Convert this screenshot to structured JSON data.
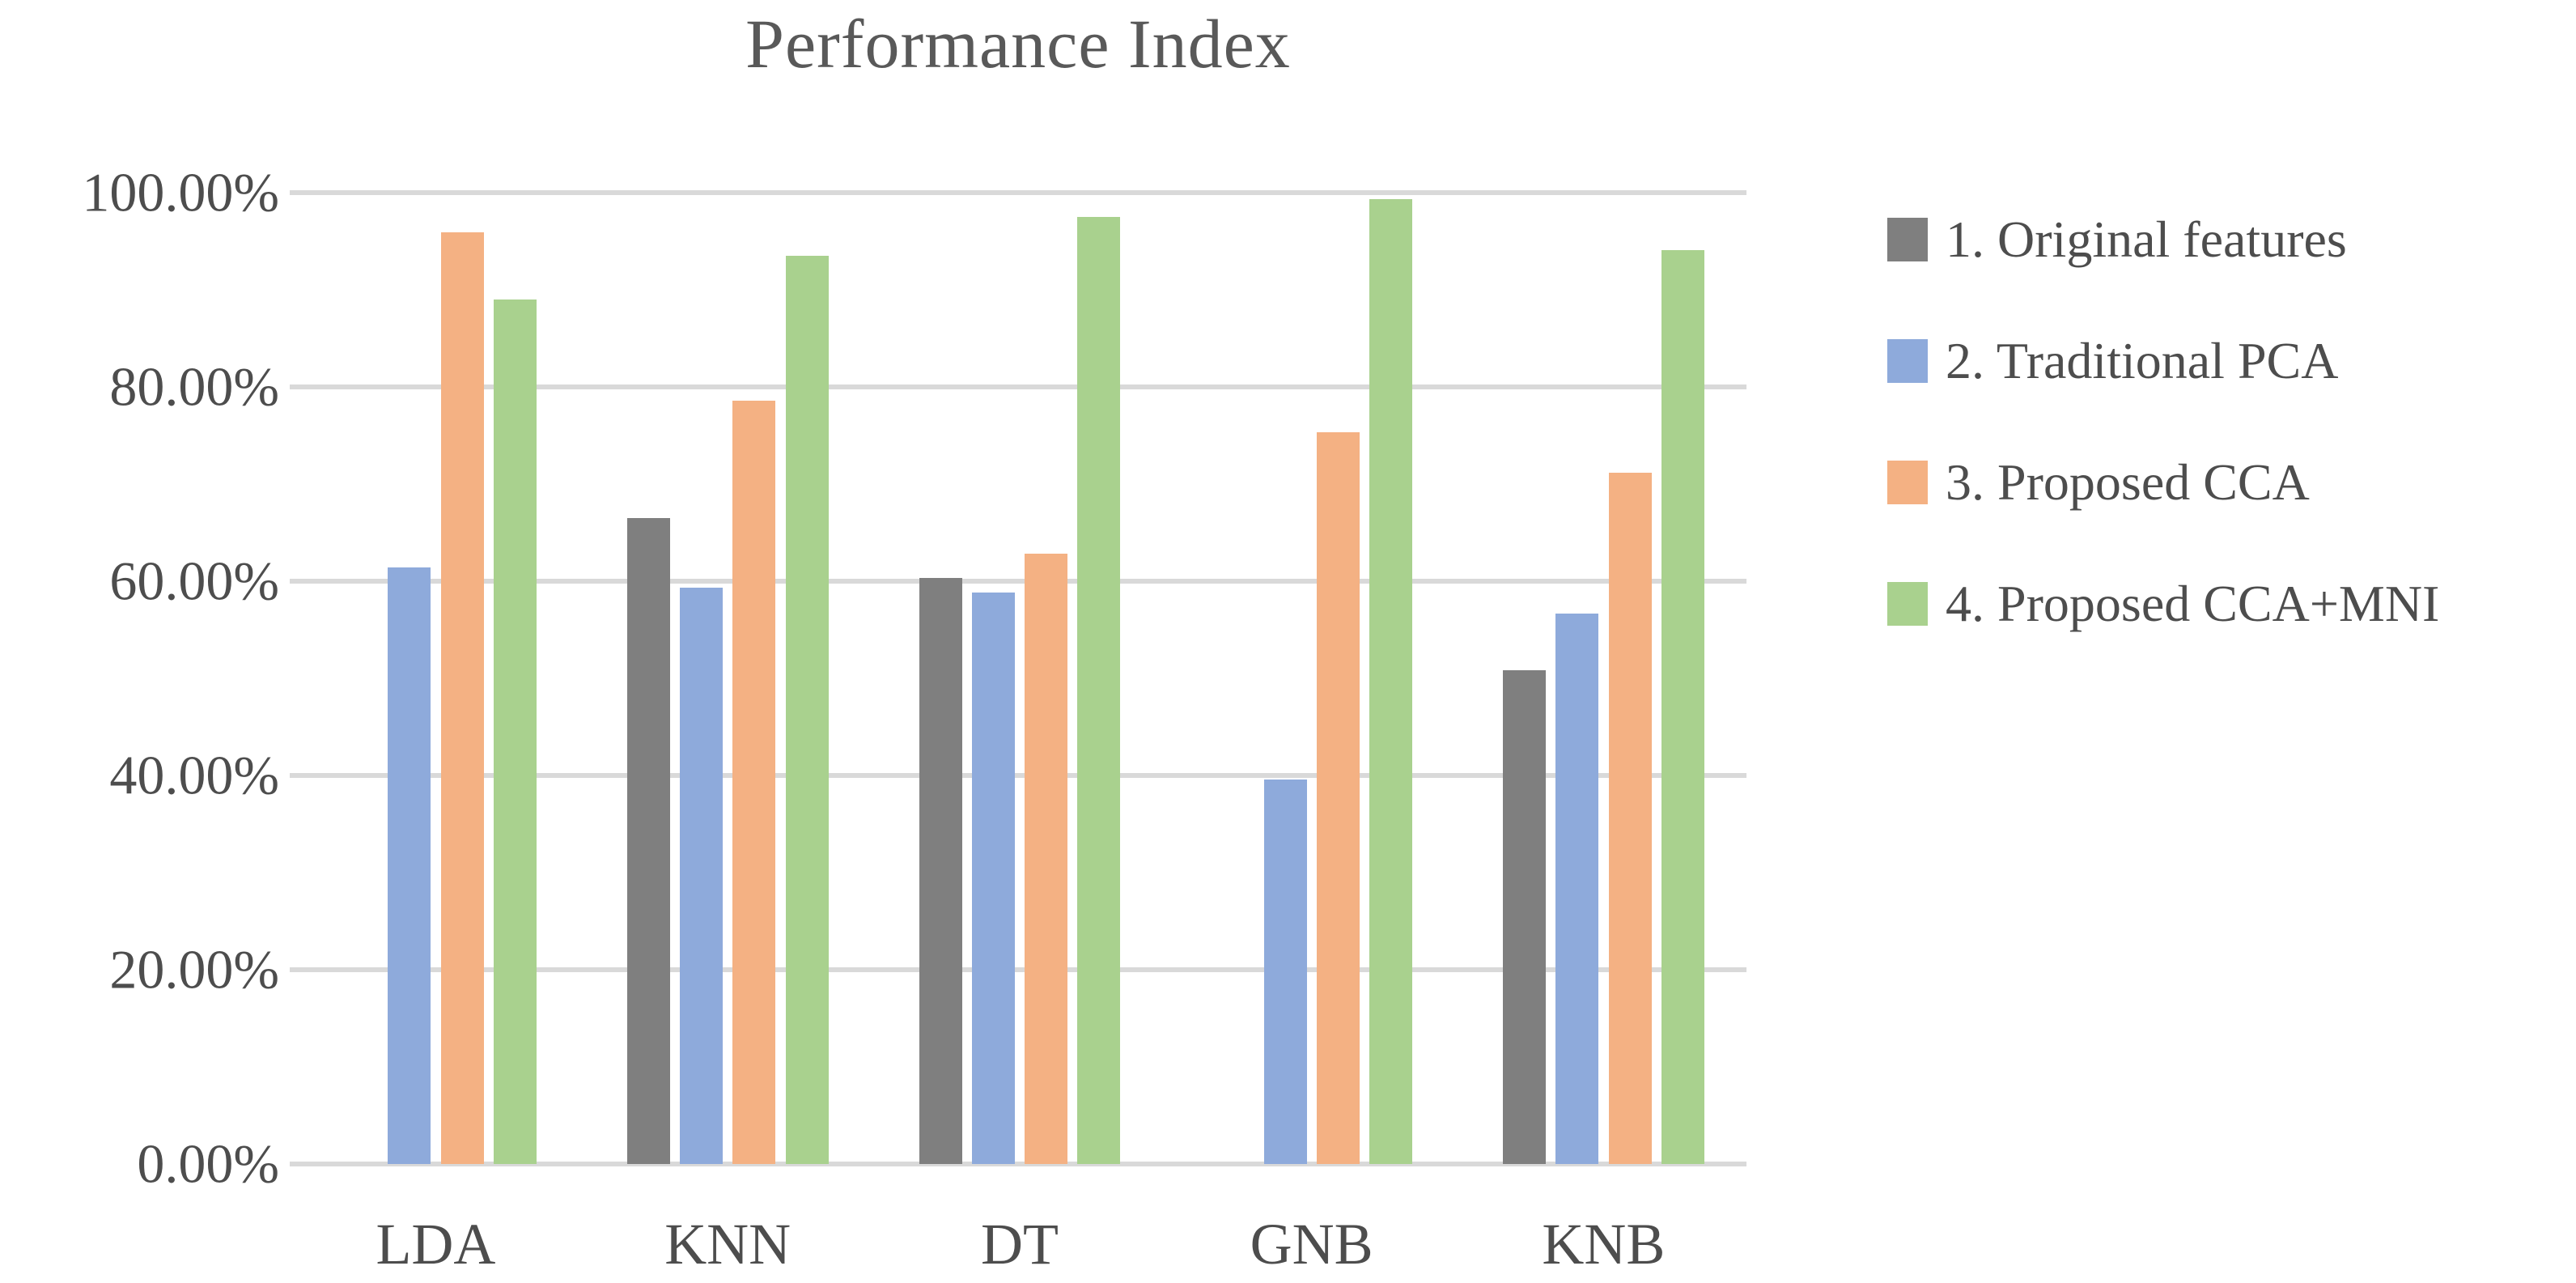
{
  "chart_data": {
    "type": "bar",
    "title": "Performance Index",
    "categories": [
      "LDA",
      "KNN",
      "DT",
      "GNB",
      "KNB"
    ],
    "series": [
      {
        "name": "1. Original features",
        "color": "#7F7F7F",
        "values": [
          0,
          66.5,
          60.3,
          0,
          50.8
        ]
      },
      {
        "name": "2. Traditional PCA",
        "color": "#8EAADB",
        "values": [
          61.4,
          59.3,
          58.8,
          39.6,
          56.7
        ]
      },
      {
        "name": "3. Proposed CCA",
        "color": "#F4B183",
        "values": [
          95.9,
          78.6,
          62.8,
          75.3,
          71.2
        ]
      },
      {
        "name": "4. Proposed CCA+MNI",
        "color": "#A9D18E",
        "values": [
          89.0,
          93.5,
          97.5,
          99.3,
          94.1
        ]
      }
    ],
    "y_axis": {
      "ticks": [
        "100.00%",
        "80.00%",
        "60.00%",
        "40.00%",
        "20.00%",
        "0.00%"
      ],
      "min": 0,
      "max": 100,
      "step": 20
    },
    "xlabel": "",
    "ylabel": "",
    "grid": true,
    "legend_position": "right",
    "gridline_color": "#D9D9D9",
    "title_color": "#595959",
    "text_color": "#4d4d4d",
    "background_color": "#ffffff"
  }
}
